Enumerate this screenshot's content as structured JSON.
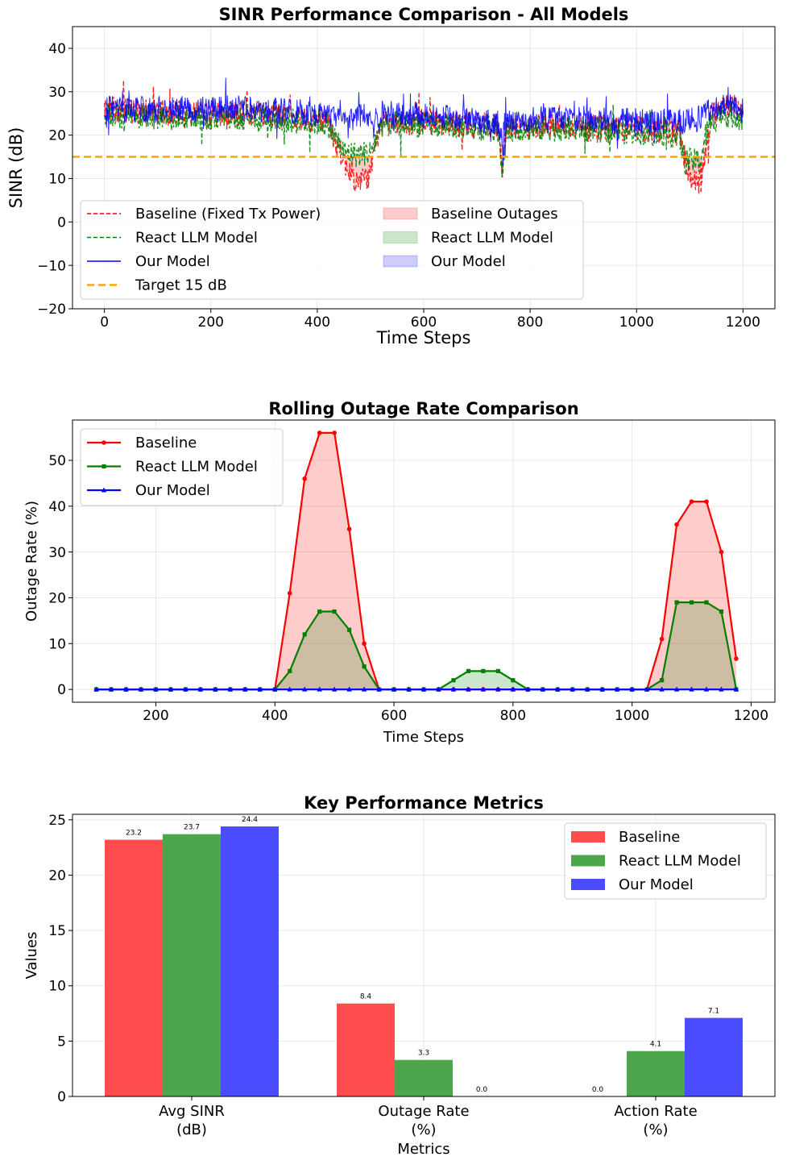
{
  "chart_data": [
    {
      "type": "line",
      "title": "SINR Performance Comparison - All Models",
      "xlabel": "Time Steps",
      "ylabel": "SINR (dB)",
      "xlim": [
        -60,
        1260
      ],
      "ylim": [
        -20,
        45
      ],
      "xticks": [
        0,
        200,
        400,
        600,
        800,
        1000,
        1200
      ],
      "yticks": [
        -20,
        -10,
        0,
        10,
        20,
        30,
        40
      ],
      "grid": true,
      "legend_position": "lower-left",
      "threshold": {
        "label": "Target 15 dB",
        "value": 15,
        "color": "#ffa500"
      },
      "series": [
        {
          "name": "Baseline (Fixed Tx Power)",
          "color": "#ff0000",
          "style": "dashed",
          "keypoints": [
            [
              0,
              26
            ],
            [
              140,
              25
            ],
            [
              300,
              25
            ],
            [
              420,
              23
            ],
            [
              450,
              14
            ],
            [
              475,
              9
            ],
            [
              500,
              11
            ],
            [
              520,
              23
            ],
            [
              600,
              23
            ],
            [
              740,
              22
            ],
            [
              748,
              13
            ],
            [
              756,
              22
            ],
            [
              900,
              22
            ],
            [
              1080,
              21
            ],
            [
              1095,
              12
            ],
            [
              1110,
              9
            ],
            [
              1125,
              12
            ],
            [
              1140,
              24
            ],
            [
              1160,
              28
            ],
            [
              1200,
              25
            ]
          ]
        },
        {
          "name": "React LLM Model",
          "color": "#008000",
          "style": "dashed",
          "keypoints": [
            [
              0,
              24.5
            ],
            [
              140,
              24
            ],
            [
              300,
              24
            ],
            [
              420,
              22.5
            ],
            [
              450,
              16
            ],
            [
              475,
              15.5
            ],
            [
              500,
              16
            ],
            [
              520,
              22.5
            ],
            [
              600,
              22.5
            ],
            [
              740,
              21.5
            ],
            [
              748,
              12
            ],
            [
              756,
              21.5
            ],
            [
              900,
              21.5
            ],
            [
              1080,
              20
            ],
            [
              1090,
              14
            ],
            [
              1120,
              14
            ],
            [
              1130,
              20
            ],
            [
              1140,
              23
            ],
            [
              1160,
              25
            ],
            [
              1200,
              24
            ]
          ]
        },
        {
          "name": "Our Model",
          "color": "#0000ff",
          "style": "solid",
          "keypoints": [
            [
              0,
              26
            ],
            [
              140,
              26
            ],
            [
              300,
              26
            ],
            [
              420,
              24.5
            ],
            [
              460,
              24
            ],
            [
              520,
              25
            ],
            [
              600,
              24.5
            ],
            [
              740,
              23
            ],
            [
              748,
              19
            ],
            [
              756,
              23.5
            ],
            [
              900,
              23.5
            ],
            [
              1080,
              23
            ],
            [
              1110,
              23.5
            ],
            [
              1140,
              26
            ],
            [
              1160,
              27
            ],
            [
              1200,
              26
            ]
          ]
        }
      ],
      "fill_legend": [
        {
          "name": "Baseline Outages",
          "color": "#ff0000"
        },
        {
          "name": "React LLM Model",
          "color": "#008000"
        },
        {
          "name": "Our Model",
          "color": "#0000ff"
        }
      ]
    },
    {
      "type": "line",
      "title": "Rolling Outage Rate Comparison",
      "xlabel": "Time Steps",
      "ylabel": "Outage Rate (%)",
      "xlim": [
        60,
        1240
      ],
      "ylim": [
        -2.8,
        58.8
      ],
      "xticks": [
        200,
        400,
        600,
        800,
        1000,
        1200
      ],
      "yticks": [
        0,
        10,
        20,
        30,
        40,
        50
      ],
      "grid": true,
      "legend_position": "top-left",
      "x": [
        100,
        125,
        150,
        175,
        200,
        225,
        250,
        275,
        300,
        325,
        350,
        375,
        400,
        425,
        450,
        475,
        500,
        525,
        550,
        575,
        600,
        625,
        650,
        675,
        700,
        725,
        750,
        775,
        800,
        825,
        850,
        875,
        900,
        925,
        950,
        975,
        1000,
        1025,
        1050,
        1075,
        1100,
        1125,
        1150,
        1175
      ],
      "series": [
        {
          "name": "Baseline",
          "color": "#ff0000",
          "marker": "circle",
          "values": [
            0,
            0,
            0,
            0,
            0,
            0,
            0,
            0,
            0,
            0,
            0,
            0,
            0,
            21,
            46,
            56,
            56,
            35,
            10,
            0,
            0,
            0,
            0,
            0,
            0,
            0,
            0,
            0,
            0,
            0,
            0,
            0,
            0,
            0,
            0,
            0,
            0,
            0,
            11,
            36,
            41,
            41,
            30,
            6.7
          ]
        },
        {
          "name": "React LLM Model",
          "color": "#008000",
          "marker": "square",
          "values": [
            0,
            0,
            0,
            0,
            0,
            0,
            0,
            0,
            0,
            0,
            0,
            0,
            0,
            4,
            12,
            17,
            17,
            13,
            5,
            0,
            0,
            0,
            0,
            0,
            2,
            4,
            4,
            4,
            2,
            0,
            0,
            0,
            0,
            0,
            0,
            0,
            0,
            0,
            2,
            19,
            19,
            19,
            17,
            0
          ]
        },
        {
          "name": "Our Model",
          "color": "#0000ff",
          "marker": "triangle",
          "values": [
            0,
            0,
            0,
            0,
            0,
            0,
            0,
            0,
            0,
            0,
            0,
            0,
            0,
            0,
            0,
            0,
            0,
            0,
            0,
            0,
            0,
            0,
            0,
            0,
            0,
            0,
            0,
            0,
            0,
            0,
            0,
            0,
            0,
            0,
            0,
            0,
            0,
            0,
            0,
            0,
            0,
            0,
            0,
            0
          ]
        }
      ]
    },
    {
      "type": "bar",
      "title": "Key Performance Metrics",
      "xlabel": "Metrics",
      "ylabel": "Values",
      "ylim": [
        0,
        25.5
      ],
      "yticks": [
        0,
        5,
        10,
        15,
        20,
        25
      ],
      "grid": true,
      "legend_position": "top-right",
      "categories": [
        [
          "Avg SINR",
          "(dB)"
        ],
        [
          "Outage Rate",
          "(%)"
        ],
        [
          "Action Rate",
          "(%)"
        ]
      ],
      "series": [
        {
          "name": "Baseline",
          "color": "#ff4c4c",
          "values": [
            23.2,
            8.4,
            0.0
          ]
        },
        {
          "name": "React LLM Model",
          "color": "#4ca64c",
          "values": [
            23.7,
            3.3,
            4.1
          ]
        },
        {
          "name": "Our Model",
          "color": "#4c4cff",
          "values": [
            24.4,
            0.0,
            7.1
          ]
        }
      ]
    }
  ]
}
